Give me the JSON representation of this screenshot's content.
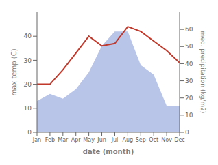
{
  "chart_data": {
    "type": "line",
    "categories": [
      "Jan",
      "Feb",
      "Mar",
      "Apr",
      "May",
      "Jun",
      "Jul",
      "Aug",
      "Sep",
      "Oct",
      "Nov",
      "Dec"
    ],
    "series": [
      {
        "type": "area",
        "color": "#b8c4e8",
        "values": [
          13,
          16,
          14,
          18,
          25,
          36,
          42,
          42,
          28,
          24,
          11,
          11
        ]
      },
      {
        "type": "line",
        "color": "#c0392b",
        "values": [
          20,
          20,
          26,
          33,
          40,
          36,
          37,
          44,
          42,
          38,
          34,
          29
        ]
      }
    ],
    "ylim": [
      0,
      50
    ],
    "yticks": [
      0,
      10,
      20,
      30,
      40
    ],
    "y2lim": [
      0,
      70
    ],
    "y2ticks": [
      0,
      10,
      20,
      30,
      40,
      50,
      60
    ],
    "xlabel": "date (month)",
    "ylabel": "max temp (C)",
    "y2label": "med. precipitation (kg/m2)",
    "grid": false
  }
}
